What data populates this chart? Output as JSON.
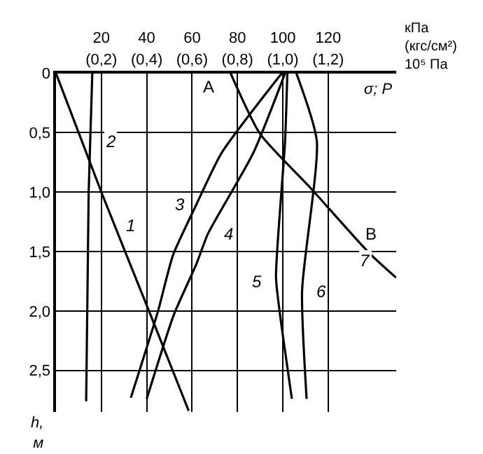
{
  "chart_data": {
    "type": "line",
    "xlabel": "σ; P",
    "ylabel": "h,\nм",
    "xlim": [
      0,
      150
    ],
    "ylim": [
      2.85,
      0
    ],
    "xticks": [
      20,
      40,
      60,
      80,
      100,
      120
    ],
    "x2lim": [
      0,
      1.5
    ],
    "x2ticks": [
      {
        "value": 0.2,
        "label": "(0,2)"
      },
      {
        "value": 0.4,
        "label": "(0,4)"
      },
      {
        "value": 0.6,
        "label": "(0,6)"
      },
      {
        "value": 0.8,
        "label": "(0,8)"
      },
      {
        "value": 1.0,
        "label": "(1,0)"
      },
      {
        "value": 1.2,
        "label": "(1,2)"
      }
    ],
    "yticks": [
      {
        "value": 0,
        "label": "0"
      },
      {
        "value": 0.5,
        "label": "0,5"
      },
      {
        "value": 1,
        "label": "1,0"
      },
      {
        "value": 1.5,
        "label": "1,5"
      },
      {
        "value": 2,
        "label": "2,0"
      },
      {
        "value": 2.5,
        "label": "2,5"
      }
    ],
    "grid": true,
    "marker": "none",
    "line_style": "solid",
    "series": [
      {
        "name": "1",
        "color": "#000000",
        "x": [
          0,
          20,
          41,
          58.5
        ],
        "values": [
          0,
          1.0,
          2.0,
          2.84
        ]
      },
      {
        "name": "2",
        "color": "#000000",
        "x": [
          16,
          14.4,
          13.3
        ],
        "values": [
          0,
          1.0,
          2.76
        ]
      },
      {
        "name": "3",
        "color": "#000000",
        "x": [
          99.5,
          73,
          62,
          51.6,
          45,
          33
        ],
        "values": [
          0,
          0.67,
          1.1,
          1.53,
          2.0,
          2.73
        ]
      },
      {
        "name": "4",
        "color": "#000000",
        "x": [
          101,
          87,
          67,
          62,
          52,
          40
        ],
        "values": [
          0,
          0.67,
          1.35,
          1.6,
          2.03,
          2.74
        ]
      },
      {
        "name": "5",
        "color": "#000000",
        "x": [
          102,
          101,
          97,
          98.5,
          104
        ],
        "values": [
          0,
          0.57,
          1.71,
          1.99,
          2.74
        ]
      },
      {
        "name": "6",
        "color": "#000000",
        "x": [
          106,
          115,
          108.5,
          110.5
        ],
        "values": [
          0,
          0.57,
          1.83,
          2.74
        ]
      },
      {
        "name": "7",
        "color": "#000000",
        "x": [
          77,
          90,
          112,
          138,
          150
        ],
        "values": [
          0,
          0.51,
          0.96,
          1.51,
          1.72
        ]
      }
    ],
    "annotations": [
      "A",
      "B",
      "кПа\n(кгс/см²)\n10⁵ Па"
    ]
  }
}
